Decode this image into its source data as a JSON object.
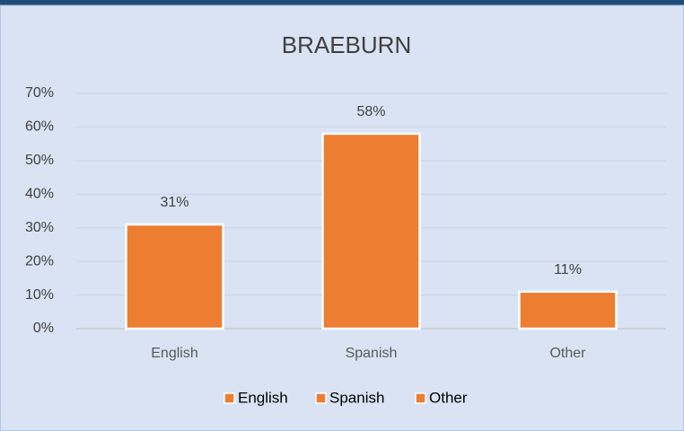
{
  "chart_data": {
    "type": "bar",
    "title": "BRAEBURN",
    "categories": [
      "English",
      "Spanish",
      "Other"
    ],
    "values": [
      31,
      58,
      11
    ],
    "value_labels": [
      "31%",
      "58%",
      "11%"
    ],
    "color": "#ed7d31",
    "ylim": [
      0,
      70
    ],
    "yticks": [
      {
        "value": 0,
        "label": "0%"
      },
      {
        "value": 10,
        "label": "10%"
      },
      {
        "value": 20,
        "label": "20%"
      },
      {
        "value": 30,
        "label": "30%"
      },
      {
        "value": 40,
        "label": "40%"
      },
      {
        "value": 50,
        "label": "50%"
      },
      {
        "value": 60,
        "label": "60%"
      },
      {
        "value": 70,
        "label": "70%"
      }
    ],
    "grid": true,
    "legend": "bottom"
  }
}
